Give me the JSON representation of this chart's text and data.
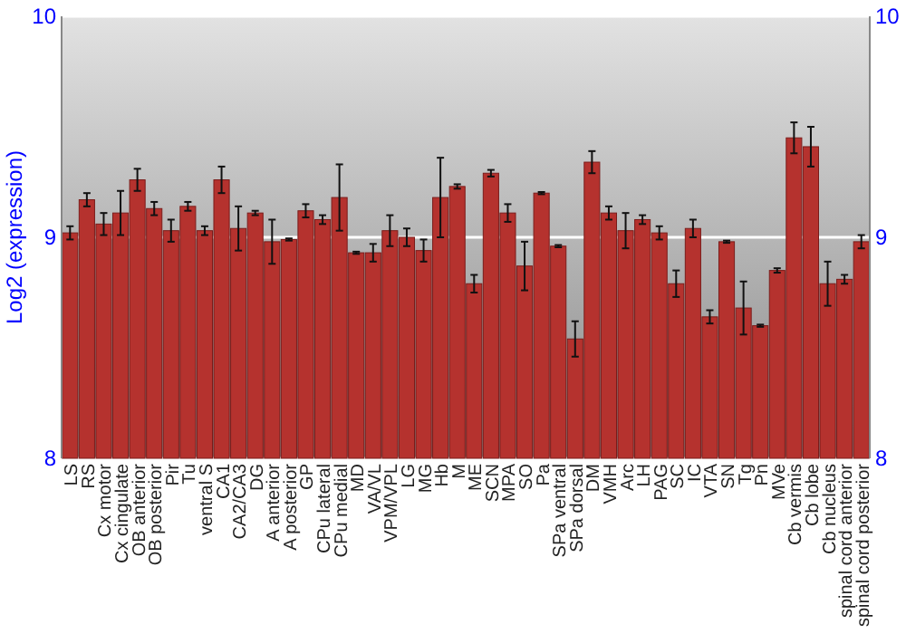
{
  "chart_data": {
    "type": "bar",
    "ylabel": "Log2 (expression)",
    "categories": [
      "LS",
      "RS",
      "Cx motor",
      "Cx cingulate",
      "OB anterior",
      "OB posterior",
      "Pir",
      "Tu",
      "ventral S",
      "CA1",
      "CA2/CA3",
      "DG",
      "A anterior",
      "A posterior",
      "GP",
      "CPu lateral",
      "CPu medial",
      "MD",
      "VA/VL",
      "VPM/VPL",
      "LG",
      "MG",
      "Hb",
      "M",
      "ME",
      "SCN",
      "MPA",
      "SO",
      "Pa",
      "SPa ventral",
      "SPa dorsal",
      "DM",
      "VMH",
      "Arc",
      "LH",
      "PAG",
      "SC",
      "IC",
      "VTA",
      "SN",
      "Tg",
      "Pn",
      "MVe",
      "Cb vermis",
      "Cb lobe",
      "Cb nucleus",
      "spinal cord anterior",
      "spinal cord posterior"
    ],
    "values": [
      9.02,
      9.17,
      9.06,
      9.11,
      9.26,
      9.13,
      9.03,
      9.14,
      9.03,
      9.26,
      9.04,
      9.11,
      8.98,
      8.99,
      9.12,
      9.08,
      9.18,
      8.93,
      8.93,
      9.03,
      9.0,
      8.94,
      9.18,
      9.23,
      8.79,
      9.29,
      9.11,
      8.87,
      9.2,
      8.96,
      8.54,
      9.34,
      9.11,
      9.03,
      9.08,
      9.02,
      8.79,
      9.04,
      8.64,
      8.98,
      8.68,
      8.6,
      8.85,
      9.45,
      9.41,
      8.79,
      8.81,
      8.98
    ],
    "errors": [
      0.03,
      0.03,
      0.05,
      0.1,
      0.05,
      0.03,
      0.05,
      0.02,
      0.02,
      0.06,
      0.1,
      0.01,
      0.1,
      0.005,
      0.03,
      0.02,
      0.15,
      0.005,
      0.04,
      0.07,
      0.04,
      0.05,
      0.18,
      0.01,
      0.04,
      0.015,
      0.04,
      0.11,
      0.005,
      0.005,
      0.08,
      0.05,
      0.03,
      0.08,
      0.02,
      0.03,
      0.06,
      0.04,
      0.03,
      0.005,
      0.12,
      0.005,
      0.01,
      0.07,
      0.09,
      0.1,
      0.02,
      0.03
    ],
    "color": "#b5322e",
    "ylim": [
      8,
      10
    ],
    "yticks": [
      8,
      9,
      10
    ],
    "y2lim": [
      8,
      10
    ],
    "y2ticks": [
      8,
      9,
      10
    ],
    "grid": "y"
  }
}
